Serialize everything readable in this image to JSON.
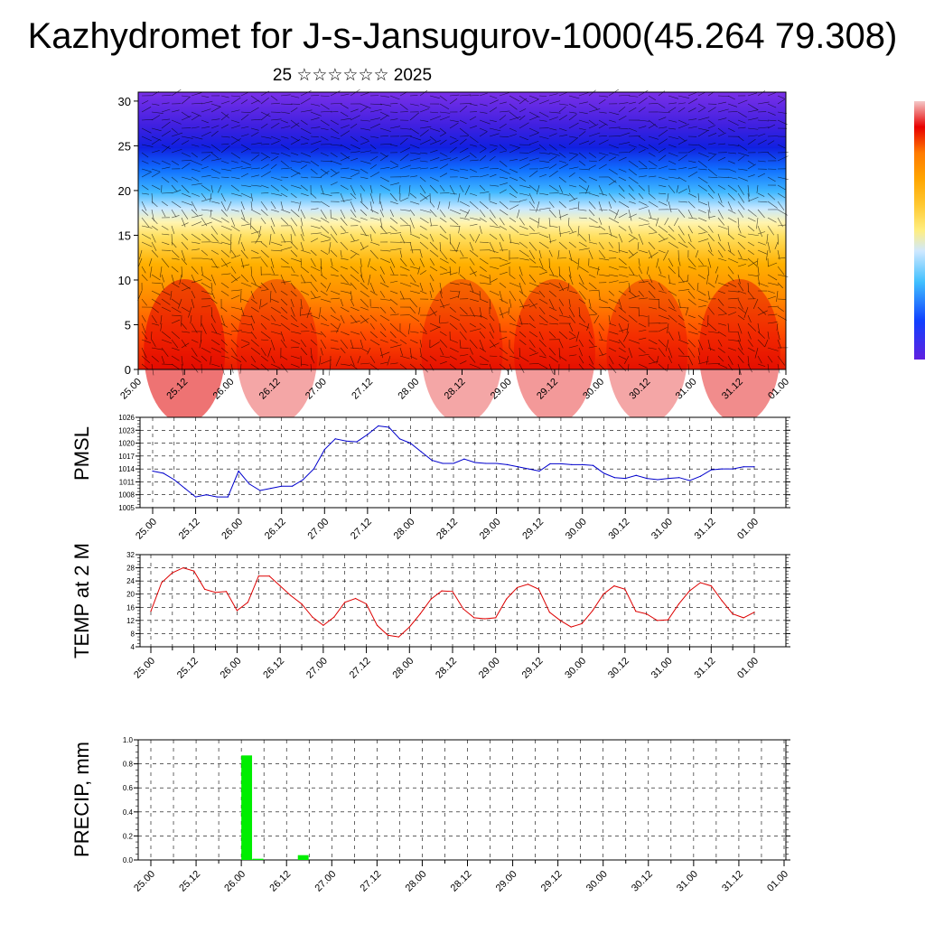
{
  "title": "Kazhydromet for J-s-Jansugurov-1000(45.264 79.308)",
  "subtitle": "25 ☆☆☆☆☆☆ 2025",
  "time_labels": [
    "25.00",
    "25.12",
    "26.00",
    "26.12",
    "27.00",
    "27.12",
    "28.00",
    "28.12",
    "29.00",
    "29.12",
    "30.00",
    "30.12",
    "31.00",
    "31.12",
    "01.00"
  ],
  "colorbar_colors": [
    "#f4c8c8",
    "#e80000",
    "#ff4800",
    "#ff7a00",
    "#ffa500",
    "#ffc830",
    "#ffee80",
    "#cfe8ff",
    "#40c0ff",
    "#1040ff",
    "#6020e0"
  ],
  "chart_data": [
    {
      "type": "heatmap",
      "name": "cross-section",
      "y_ticks": [
        0,
        5,
        10,
        15,
        20,
        25,
        30
      ],
      "ylim": [
        0,
        31
      ],
      "x_range_hours": [
        0,
        168
      ],
      "wind_barbs": true
    },
    {
      "type": "line",
      "ylabel": "PMSL",
      "ylim": [
        1005,
        1026
      ],
      "y_ticks": [
        1005,
        1008,
        1011,
        1014,
        1017,
        1020,
        1023,
        1026
      ],
      "color": "#0000cc",
      "x_hours": [
        0,
        3,
        6,
        9,
        12,
        15,
        18,
        21,
        24,
        27,
        30,
        33,
        36,
        39,
        42,
        45,
        48,
        51,
        54,
        57,
        60,
        63,
        66,
        69,
        72,
        75,
        78,
        81,
        84,
        87,
        90,
        93,
        96,
        99,
        102,
        105,
        108,
        111,
        114,
        117,
        120,
        123,
        126,
        129,
        132,
        135,
        138,
        141,
        144,
        147,
        150,
        153,
        156,
        159,
        162,
        165,
        168
      ],
      "values": [
        1013.5,
        1013,
        1011.5,
        1009.5,
        1007.5,
        1008,
        1007.5,
        1007.5,
        1013.5,
        1010.5,
        1009,
        1009.5,
        1010,
        1010,
        1011.5,
        1014,
        1018.5,
        1021,
        1020.5,
        1020.3,
        1022,
        1024,
        1023.7,
        1021,
        1020,
        1018,
        1016,
        1015.3,
        1015.3,
        1016.3,
        1015.5,
        1015.3,
        1015.3,
        1015,
        1014.5,
        1014,
        1013.5,
        1015.2,
        1015.2,
        1015,
        1015,
        1014.8,
        1013,
        1012,
        1011.8,
        1012.5,
        1011.8,
        1011.5,
        1011.8,
        1012,
        1011.3,
        1012.3,
        1013.8,
        1014,
        1014,
        1014.5,
        1014.5
      ]
    },
    {
      "type": "line",
      "ylabel": "TEMP at 2 M",
      "ylim": [
        4,
        32
      ],
      "y_ticks": [
        4,
        8,
        12,
        16,
        20,
        24,
        28,
        32
      ],
      "color": "#dd0000",
      "x_hours": [
        0,
        3,
        6,
        9,
        12,
        15,
        18,
        21,
        24,
        27,
        30,
        33,
        36,
        39,
        42,
        45,
        48,
        51,
        54,
        57,
        60,
        63,
        66,
        69,
        72,
        75,
        78,
        81,
        84,
        87,
        90,
        93,
        96,
        99,
        102,
        105,
        108,
        111,
        114,
        117,
        120,
        123,
        126,
        129,
        132,
        135,
        138,
        141,
        144,
        147,
        150,
        153,
        156,
        159,
        162,
        165,
        168
      ],
      "values": [
        14.8,
        23.5,
        26.5,
        28,
        27,
        21.5,
        20.5,
        20.8,
        15,
        17.5,
        25.5,
        25.5,
        22.5,
        19.5,
        17,
        13,
        10.5,
        13,
        17.5,
        18.7,
        17,
        10.5,
        7.5,
        7,
        10,
        14,
        18.5,
        21,
        20.8,
        15.5,
        12.8,
        12.5,
        12.8,
        18.5,
        22,
        23,
        21.5,
        14.5,
        12,
        10,
        11,
        15,
        20,
        22.5,
        21.5,
        14.8,
        14,
        12,
        12.2,
        17,
        21,
        23.5,
        22.5,
        18,
        14,
        12.8,
        14.5
      ]
    },
    {
      "type": "bar",
      "ylabel": "PRECIP, mm",
      "ylim": [
        0,
        1
      ],
      "y_ticks": [
        "0.0",
        "0.2",
        "0.4",
        "0.6",
        "0.8",
        "1.0"
      ],
      "color": "#00ee00",
      "x_hours": [
        24,
        27,
        39
      ],
      "values": [
        0.87,
        0.01,
        0.04
      ]
    }
  ]
}
